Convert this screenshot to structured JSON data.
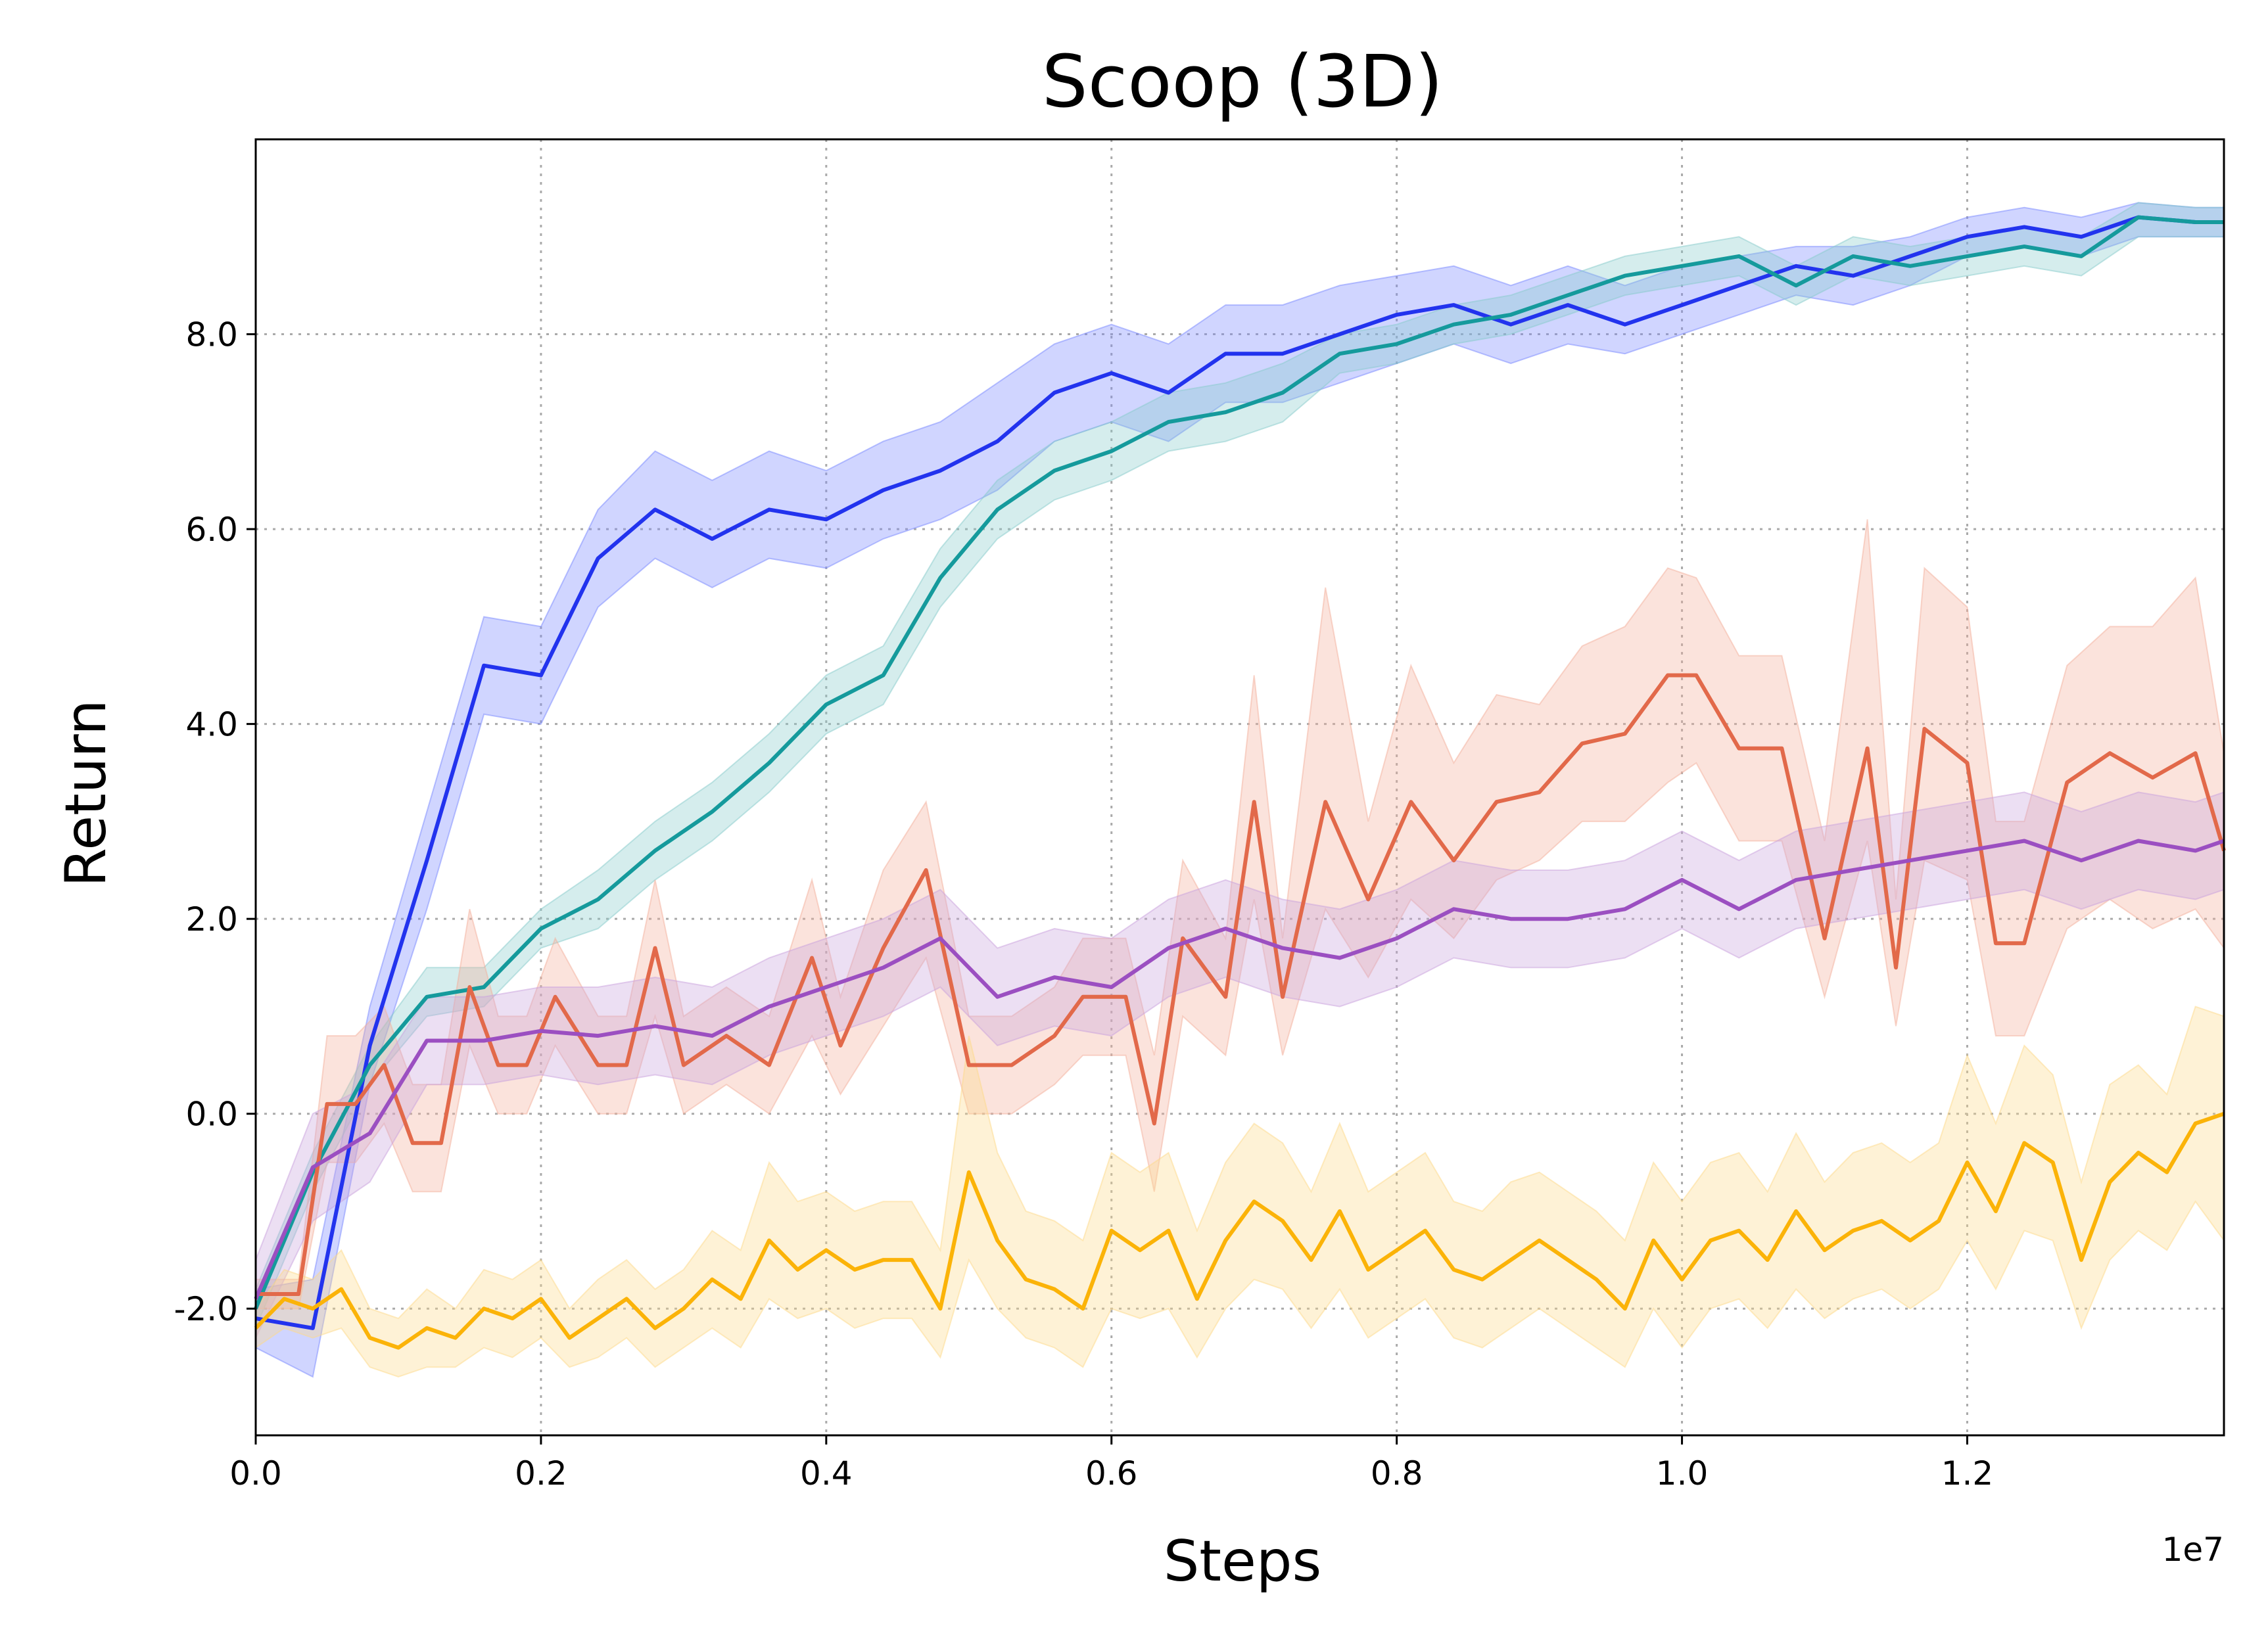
{
  "chart_data": {
    "type": "line",
    "title": "Scoop (3D)",
    "xlabel": "Steps",
    "ylabel": "Return",
    "x_offset_label": "1e7",
    "xlim": [
      0,
      13800000
    ],
    "ylim": [
      -3.3,
      10.0
    ],
    "grid": true,
    "xticks": [
      0,
      2000000,
      4000000,
      6000000,
      8000000,
      10000000,
      12000000
    ],
    "xtick_labels": [
      "0.0",
      "0.2",
      "0.4",
      "0.6",
      "0.8",
      "1.0",
      "1.2"
    ],
    "yticks": [
      -2,
      0,
      2,
      4,
      6,
      8
    ],
    "ytick_labels": [
      "-2.0",
      "0.0",
      "2.0",
      "4.0",
      "6.0",
      "8.0"
    ],
    "series": [
      {
        "color": "#2233ee",
        "band_color": "#7788ff",
        "x": [
          0,
          400000,
          800000,
          1200000,
          1600000,
          2000000,
          2400000,
          2800000,
          3200000,
          3600000,
          4000000,
          4400000,
          4800000,
          5200000,
          5600000,
          6000000,
          6400000,
          6800000,
          7200000,
          7600000,
          8000000,
          8400000,
          8800000,
          9200000,
          9600000,
          10000000,
          10400000,
          10800000,
          11200000,
          11600000,
          12000000,
          12400000,
          12800000,
          13200000,
          13600000,
          13800000
        ],
        "y": [
          -2.1,
          -2.2,
          0.7,
          2.6,
          4.6,
          4.5,
          5.7,
          6.2,
          5.9,
          6.2,
          6.1,
          6.4,
          6.6,
          6.9,
          7.4,
          7.6,
          7.4,
          7.8,
          7.8,
          8.0,
          8.2,
          8.3,
          8.1,
          8.3,
          8.1,
          8.3,
          8.5,
          8.7,
          8.6,
          8.8,
          9.0,
          9.1,
          9.0,
          9.2,
          9.15,
          9.15
        ],
        "lower": [
          -2.4,
          -2.7,
          0.3,
          2.1,
          4.1,
          4.0,
          5.2,
          5.7,
          5.4,
          5.7,
          5.6,
          5.9,
          6.1,
          6.4,
          6.9,
          7.1,
          6.9,
          7.3,
          7.3,
          7.5,
          7.7,
          7.9,
          7.7,
          7.9,
          7.8,
          8.0,
          8.2,
          8.4,
          8.3,
          8.5,
          8.8,
          8.9,
          8.8,
          9.0,
          9.0,
          9.0
        ],
        "upper": [
          -1.8,
          -1.7,
          1.1,
          3.1,
          5.1,
          5.0,
          6.2,
          6.8,
          6.5,
          6.8,
          6.6,
          6.9,
          7.1,
          7.5,
          7.9,
          8.1,
          7.9,
          8.3,
          8.3,
          8.5,
          8.6,
          8.7,
          8.5,
          8.7,
          8.5,
          8.7,
          8.8,
          8.9,
          8.9,
          9.0,
          9.2,
          9.3,
          9.2,
          9.35,
          9.3,
          9.3
        ]
      },
      {
        "color": "#159a9c",
        "band_color": "#88cccc",
        "x": [
          0,
          400000,
          800000,
          1200000,
          1600000,
          2000000,
          2400000,
          2800000,
          3200000,
          3600000,
          4000000,
          4400000,
          4800000,
          5200000,
          5600000,
          6000000,
          6400000,
          6800000,
          7200000,
          7600000,
          8000000,
          8400000,
          8800000,
          9200000,
          9600000,
          10000000,
          10400000,
          10800000,
          11200000,
          11600000,
          12000000,
          12400000,
          12800000,
          13200000,
          13600000,
          13800000
        ],
        "y": [
          -2.0,
          -0.6,
          0.5,
          1.2,
          1.3,
          1.9,
          2.2,
          2.7,
          3.1,
          3.6,
          4.2,
          4.5,
          5.5,
          6.2,
          6.6,
          6.8,
          7.1,
          7.2,
          7.4,
          7.8,
          7.9,
          8.1,
          8.2,
          8.4,
          8.6,
          8.7,
          8.8,
          8.5,
          8.8,
          8.7,
          8.8,
          8.9,
          8.8,
          9.2,
          9.15,
          9.15
        ],
        "lower": [
          -2.2,
          -0.8,
          0.3,
          1.0,
          1.1,
          1.7,
          1.9,
          2.4,
          2.8,
          3.3,
          3.9,
          4.2,
          5.2,
          5.9,
          6.3,
          6.5,
          6.8,
          6.9,
          7.1,
          7.6,
          7.7,
          7.9,
          8.0,
          8.2,
          8.4,
          8.5,
          8.6,
          8.3,
          8.6,
          8.5,
          8.6,
          8.7,
          8.6,
          9.0,
          9.0,
          9.0
        ],
        "upper": [
          -1.8,
          -0.4,
          0.7,
          1.5,
          1.5,
          2.1,
          2.5,
          3.0,
          3.4,
          3.9,
          4.5,
          4.8,
          5.8,
          6.5,
          6.9,
          7.1,
          7.4,
          7.5,
          7.7,
          8.0,
          8.1,
          8.3,
          8.4,
          8.6,
          8.8,
          8.9,
          9.0,
          8.7,
          9.0,
          8.9,
          9.0,
          9.1,
          9.0,
          9.35,
          9.3,
          9.3
        ]
      },
      {
        "color": "#e2694a",
        "band_color": "#f4b09b",
        "x": [
          0,
          300000,
          500000,
          700000,
          900000,
          1100000,
          1300000,
          1500000,
          1700000,
          1900000,
          2100000,
          2400000,
          2600000,
          2800000,
          3000000,
          3300000,
          3600000,
          3900000,
          4100000,
          4400000,
          4700000,
          5000000,
          5300000,
          5600000,
          5800000,
          6100000,
          6300000,
          6500000,
          6800000,
          7000000,
          7200000,
          7500000,
          7800000,
          8100000,
          8400000,
          8700000,
          9000000,
          9300000,
          9600000,
          9900000,
          10100000,
          10400000,
          10700000,
          11000000,
          11300000,
          11500000,
          11700000,
          12000000,
          12200000,
          12400000,
          12700000,
          13000000,
          13300000,
          13600000,
          13800000
        ],
        "y": [
          -1.85,
          -1.85,
          0.1,
          0.1,
          0.5,
          -0.3,
          -0.3,
          1.3,
          0.5,
          0.5,
          1.2,
          0.5,
          0.5,
          1.7,
          0.5,
          0.8,
          0.5,
          1.6,
          0.7,
          1.7,
          2.5,
          0.5,
          0.5,
          0.8,
          1.2,
          1.2,
          -0.1,
          1.8,
          1.2,
          3.2,
          1.2,
          3.2,
          2.2,
          3.2,
          2.6,
          3.2,
          3.3,
          3.8,
          3.9,
          4.5,
          4.5,
          3.75,
          3.75,
          1.8,
          3.75,
          1.5,
          3.95,
          3.6,
          1.75,
          1.75,
          3.4,
          3.7,
          3.45,
          3.7,
          2.7
        ],
        "lower": [
          -2.0,
          -2.0,
          -0.5,
          -0.5,
          -0.1,
          -0.8,
          -0.8,
          0.7,
          0.0,
          0.0,
          0.7,
          0.0,
          0.0,
          1.0,
          0.0,
          0.3,
          0.0,
          0.8,
          0.2,
          0.9,
          1.6,
          0.0,
          0.0,
          0.3,
          0.6,
          0.6,
          -0.8,
          1.0,
          0.6,
          2.2,
          0.6,
          2.1,
          1.4,
          2.2,
          1.8,
          2.4,
          2.6,
          3.0,
          3.0,
          3.4,
          3.6,
          2.8,
          2.8,
          1.2,
          2.8,
          0.9,
          2.6,
          2.4,
          0.8,
          0.8,
          1.9,
          2.2,
          1.9,
          2.1,
          1.7
        ],
        "upper": [
          -1.7,
          -1.7,
          0.8,
          0.8,
          1.1,
          0.3,
          0.3,
          2.1,
          1.0,
          1.0,
          1.8,
          1.0,
          1.0,
          2.4,
          1.0,
          1.3,
          1.0,
          2.4,
          1.2,
          2.5,
          3.2,
          1.0,
          1.0,
          1.3,
          1.8,
          1.8,
          0.6,
          2.6,
          1.8,
          4.5,
          1.8,
          5.4,
          3.0,
          4.6,
          3.6,
          4.3,
          4.2,
          4.8,
          5.0,
          5.6,
          5.5,
          4.7,
          4.7,
          2.8,
          6.1,
          2.2,
          5.6,
          5.2,
          3.0,
          3.0,
          4.6,
          5.0,
          5.0,
          5.5,
          3.7
        ]
      },
      {
        "color": "#9b4fc1",
        "band_color": "#c9a2dd",
        "x": [
          0,
          400000,
          800000,
          1200000,
          1600000,
          2000000,
          2400000,
          2800000,
          3200000,
          3600000,
          4000000,
          4400000,
          4800000,
          5200000,
          5600000,
          6000000,
          6400000,
          6800000,
          7200000,
          7600000,
          8000000,
          8400000,
          8800000,
          9200000,
          9600000,
          10000000,
          10400000,
          10800000,
          11200000,
          11600000,
          12000000,
          12400000,
          12800000,
          13200000,
          13600000,
          13800000
        ],
        "y": [
          -1.9,
          -0.55,
          -0.2,
          0.75,
          0.75,
          0.85,
          0.8,
          0.9,
          0.8,
          1.1,
          1.3,
          1.5,
          1.8,
          1.2,
          1.4,
          1.3,
          1.7,
          1.9,
          1.7,
          1.6,
          1.8,
          2.1,
          2.0,
          2.0,
          2.1,
          2.4,
          2.1,
          2.4,
          2.5,
          2.6,
          2.7,
          2.8,
          2.6,
          2.8,
          2.7,
          2.8
        ],
        "lower": [
          -2.3,
          -1.1,
          -0.7,
          0.3,
          0.3,
          0.4,
          0.3,
          0.4,
          0.3,
          0.6,
          0.8,
          1.0,
          1.3,
          0.7,
          0.9,
          0.8,
          1.2,
          1.4,
          1.2,
          1.1,
          1.3,
          1.6,
          1.5,
          1.5,
          1.6,
          1.9,
          1.6,
          1.9,
          2.0,
          2.1,
          2.2,
          2.3,
          2.1,
          2.3,
          2.2,
          2.3
        ],
        "upper": [
          -1.5,
          0.0,
          0.3,
          1.2,
          1.2,
          1.3,
          1.3,
          1.4,
          1.3,
          1.6,
          1.8,
          2.0,
          2.3,
          1.7,
          1.9,
          1.8,
          2.2,
          2.4,
          2.2,
          2.1,
          2.3,
          2.6,
          2.5,
          2.5,
          2.6,
          2.9,
          2.6,
          2.9,
          3.0,
          3.1,
          3.2,
          3.3,
          3.1,
          3.3,
          3.2,
          3.3
        ]
      },
      {
        "color": "#fbb308",
        "band_color": "#fdd98a",
        "x": [
          0,
          200000,
          400000,
          600000,
          800000,
          1000000,
          1200000,
          1400000,
          1600000,
          1800000,
          2000000,
          2200000,
          2400000,
          2600000,
          2800000,
          3000000,
          3200000,
          3400000,
          3600000,
          3800000,
          4000000,
          4200000,
          4400000,
          4600000,
          4800000,
          5000000,
          5200000,
          5400000,
          5600000,
          5800000,
          6000000,
          6200000,
          6400000,
          6600000,
          6800000,
          7000000,
          7200000,
          7400000,
          7600000,
          7800000,
          8000000,
          8200000,
          8400000,
          8600000,
          8800000,
          9000000,
          9200000,
          9400000,
          9600000,
          9800000,
          10000000,
          10200000,
          10400000,
          10600000,
          10800000,
          11000000,
          11200000,
          11400000,
          11600000,
          11800000,
          12000000,
          12200000,
          12400000,
          12600000,
          12800000,
          13000000,
          13200000,
          13400000,
          13600000,
          13800000
        ],
        "y": [
          -2.2,
          -1.9,
          -2.0,
          -1.8,
          -2.3,
          -2.4,
          -2.2,
          -2.3,
          -2.0,
          -2.1,
          -1.9,
          -2.3,
          -2.1,
          -1.9,
          -2.2,
          -2.0,
          -1.7,
          -1.9,
          -1.3,
          -1.6,
          -1.4,
          -1.6,
          -1.5,
          -1.5,
          -2.0,
          -0.6,
          -1.3,
          -1.7,
          -1.8,
          -2.0,
          -1.2,
          -1.4,
          -1.2,
          -1.9,
          -1.3,
          -0.9,
          -1.1,
          -1.5,
          -1.0,
          -1.6,
          -1.4,
          -1.2,
          -1.6,
          -1.7,
          -1.5,
          -1.3,
          -1.5,
          -1.7,
          -2.0,
          -1.3,
          -1.7,
          -1.3,
          -1.2,
          -1.5,
          -1.0,
          -1.4,
          -1.2,
          -1.1,
          -1.3,
          -1.1,
          -0.5,
          -1.0,
          -0.3,
          -0.5,
          -1.5,
          -0.7,
          -0.4,
          -0.6,
          -0.1,
          0.0
        ],
        "lower": [
          -2.4,
          -2.2,
          -2.3,
          -2.2,
          -2.6,
          -2.7,
          -2.6,
          -2.6,
          -2.4,
          -2.5,
          -2.3,
          -2.6,
          -2.5,
          -2.3,
          -2.6,
          -2.4,
          -2.2,
          -2.4,
          -1.9,
          -2.1,
          -2.0,
          -2.2,
          -2.1,
          -2.1,
          -2.5,
          -1.5,
          -2.0,
          -2.3,
          -2.4,
          -2.6,
          -2.0,
          -2.1,
          -2.0,
          -2.5,
          -2.0,
          -1.7,
          -1.8,
          -2.2,
          -1.8,
          -2.3,
          -2.1,
          -1.9,
          -2.3,
          -2.4,
          -2.2,
          -2.0,
          -2.2,
          -2.4,
          -2.6,
          -2.0,
          -2.4,
          -2.0,
          -1.9,
          -2.2,
          -1.8,
          -2.1,
          -1.9,
          -1.8,
          -2.0,
          -1.8,
          -1.3,
          -1.8,
          -1.2,
          -1.3,
          -2.2,
          -1.5,
          -1.2,
          -1.4,
          -0.9,
          -1.3
        ],
        "upper": [
          -2.0,
          -1.6,
          -1.7,
          -1.4,
          -2.0,
          -2.1,
          -1.8,
          -2.0,
          -1.6,
          -1.7,
          -1.5,
          -2.0,
          -1.7,
          -1.5,
          -1.8,
          -1.6,
          -1.2,
          -1.4,
          -0.5,
          -0.9,
          -0.8,
          -1.0,
          -0.9,
          -0.9,
          -1.4,
          0.8,
          -0.4,
          -1.0,
          -1.1,
          -1.3,
          -0.4,
          -0.6,
          -0.4,
          -1.2,
          -0.5,
          -0.1,
          -0.3,
          -0.8,
          -0.1,
          -0.8,
          -0.6,
          -0.4,
          -0.9,
          -1.0,
          -0.7,
          -0.6,
          -0.8,
          -1.0,
          -1.3,
          -0.5,
          -0.9,
          -0.5,
          -0.4,
          -0.8,
          -0.2,
          -0.7,
          -0.4,
          -0.3,
          -0.5,
          -0.3,
          0.6,
          -0.1,
          0.7,
          0.4,
          -0.7,
          0.3,
          0.5,
          0.2,
          1.1,
          1.0
        ]
      }
    ]
  }
}
